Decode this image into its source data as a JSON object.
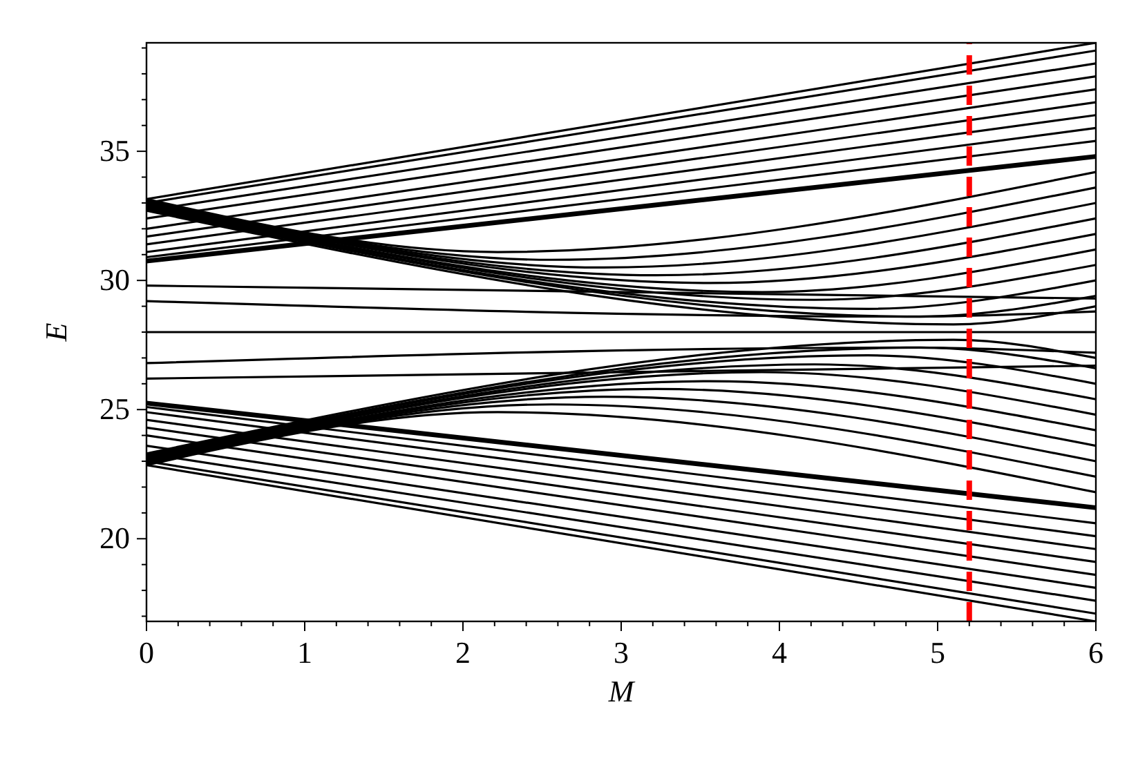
{
  "chart_data": {
    "type": "line",
    "xlabel": "M",
    "ylabel": "E",
    "xlim": [
      0,
      6
    ],
    "ylim": [
      16.8,
      39.2
    ],
    "xticks": [
      0,
      {
        "value": 0.2,
        "label": null
      },
      {
        "value": 0.4,
        "label": null
      },
      {
        "value": 0.6,
        "label": null
      },
      {
        "value": 0.8,
        "label": null
      },
      1,
      {
        "value": 1.2,
        "label": null
      },
      {
        "value": 1.4,
        "label": null
      },
      {
        "value": 1.6,
        "label": null
      },
      {
        "value": 1.8,
        "label": null
      },
      2,
      {
        "value": 2.2,
        "label": null
      },
      {
        "value": 2.4,
        "label": null
      },
      {
        "value": 2.6,
        "label": null
      },
      {
        "value": 2.8,
        "label": null
      },
      3,
      {
        "value": 3.2,
        "label": null
      },
      {
        "value": 3.4,
        "label": null
      },
      {
        "value": 3.6,
        "label": null
      },
      {
        "value": 3.8,
        "label": null
      },
      4,
      {
        "value": 4.2,
        "label": null
      },
      {
        "value": 4.4,
        "label": null
      },
      {
        "value": 4.6,
        "label": null
      },
      {
        "value": 4.8,
        "label": null
      },
      5,
      {
        "value": 5.2,
        "label": null
      },
      {
        "value": 5.4,
        "label": null
      },
      {
        "value": 5.6,
        "label": null
      },
      {
        "value": 5.8,
        "label": null
      },
      6
    ],
    "yticks": [
      {
        "value": 17,
        "label": null
      },
      {
        "value": 18,
        "label": null
      },
      {
        "value": 19,
        "label": null
      },
      20,
      {
        "value": 21,
        "label": null
      },
      {
        "value": 22,
        "label": null
      },
      {
        "value": 23,
        "label": null
      },
      {
        "value": 24,
        "label": null
      },
      25,
      {
        "value": 26,
        "label": null
      },
      {
        "value": 27,
        "label": null
      },
      {
        "value": 28,
        "label": null
      },
      {
        "value": 29,
        "label": null
      },
      30,
      {
        "value": 31,
        "label": null
      },
      {
        "value": 32,
        "label": null
      },
      {
        "value": 33,
        "label": null
      },
      {
        "value": 34,
        "label": null
      },
      35,
      {
        "value": 36,
        "label": null
      },
      {
        "value": 37,
        "label": null
      },
      {
        "value": 38,
        "label": null
      },
      {
        "value": 39,
        "label": null
      }
    ],
    "grid": false,
    "marker": "none",
    "line_style": "solid",
    "ref_lines": [
      {
        "axis": "x",
        "value": 5.2,
        "color": "#ff0000",
        "line_style": "dashed"
      }
    ],
    "series": [
      {
        "color": "#000000",
        "x": [
          0,
          6
        ],
        "values": [
          33.15,
          39.2
        ]
      },
      {
        "color": "#000000",
        "x": [
          0,
          6
        ],
        "values": [
          33.0,
          38.9
        ]
      },
      {
        "color": "#000000",
        "x": [
          0,
          6
        ],
        "values": [
          32.7,
          38.4
        ]
      },
      {
        "color": "#000000",
        "x": [
          0,
          6
        ],
        "values": [
          32.4,
          37.9
        ]
      },
      {
        "color": "#000000",
        "x": [
          0,
          6
        ],
        "values": [
          32.0,
          37.4
        ]
      },
      {
        "color": "#000000",
        "x": [
          0,
          6
        ],
        "values": [
          31.7,
          36.9
        ]
      },
      {
        "color": "#000000",
        "x": [
          0,
          6
        ],
        "values": [
          31.4,
          36.4
        ]
      },
      {
        "color": "#000000",
        "x": [
          0,
          6
        ],
        "values": [
          31.1,
          35.9
        ]
      },
      {
        "color": "#000000",
        "x": [
          0,
          6
        ],
        "values": [
          30.9,
          35.4
        ]
      },
      {
        "color": "#000000",
        "x": [
          0,
          6
        ],
        "values": [
          30.8,
          34.85
        ]
      },
      {
        "color": "#000000",
        "x": [
          0,
          6
        ],
        "values": [
          30.75,
          34.8
        ]
      },
      {
        "color": "#000000",
        "x": [
          0,
          6
        ],
        "values": [
          30.7,
          34.75
        ]
      },
      {
        "color": "#000000",
        "x": [
          0,
          2.22,
          6
        ],
        "values": [
          33.15,
          31.1,
          34.2
        ]
      },
      {
        "color": "#000000",
        "x": [
          0,
          2.56,
          6
        ],
        "values": [
          33.1,
          30.8,
          33.6
        ]
      },
      {
        "color": "#000000",
        "x": [
          0,
          2.89,
          6
        ],
        "values": [
          33.05,
          30.5,
          33.0
        ]
      },
      {
        "color": "#000000",
        "x": [
          0,
          3.22,
          6
        ],
        "values": [
          33.0,
          30.2,
          32.4
        ]
      },
      {
        "color": "#000000",
        "x": [
          0,
          3.56,
          6
        ],
        "values": [
          32.95,
          29.9,
          31.8
        ]
      },
      {
        "color": "#000000",
        "x": [
          0,
          3.89,
          6
        ],
        "values": [
          32.9,
          29.55,
          31.2
        ]
      },
      {
        "color": "#000000",
        "x": [
          0,
          4.22,
          6
        ],
        "values": [
          32.85,
          29.25,
          30.6
        ]
      },
      {
        "color": "#000000",
        "x": [
          0,
          4.56,
          6
        ],
        "values": [
          32.8,
          28.9,
          30.0
        ]
      },
      {
        "color": "#000000",
        "x": [
          0,
          4.89,
          6
        ],
        "values": [
          32.75,
          28.6,
          29.4
        ]
      },
      {
        "color": "#000000",
        "x": [
          0,
          5.1,
          6
        ],
        "values": [
          32.7,
          28.3,
          29.0
        ]
      },
      {
        "color": "#000000",
        "x": [
          0,
          6
        ],
        "values": [
          29.8,
          29.3
        ]
      },
      {
        "color": "#000000",
        "x": [
          0,
          4.8,
          6
        ],
        "values": [
          29.2,
          28.6,
          28.8
        ]
      },
      {
        "color": "#000000",
        "x": [
          0,
          6
        ],
        "values": [
          28.0,
          28.0
        ]
      },
      {
        "color": "#000000",
        "x": [
          0,
          4.8,
          6
        ],
        "values": [
          26.8,
          27.4,
          27.2
        ]
      },
      {
        "color": "#000000",
        "x": [
          0,
          6
        ],
        "values": [
          26.2,
          26.7
        ]
      },
      {
        "color": "#000000",
        "x": [
          0,
          5.1,
          6
        ],
        "values": [
          23.3,
          27.7,
          27.0
        ]
      },
      {
        "color": "#000000",
        "x": [
          0,
          4.89,
          6
        ],
        "values": [
          23.25,
          27.4,
          26.6
        ]
      },
      {
        "color": "#000000",
        "x": [
          0,
          4.56,
          6
        ],
        "values": [
          23.2,
          27.1,
          26.0
        ]
      },
      {
        "color": "#000000",
        "x": [
          0,
          4.22,
          6
        ],
        "values": [
          23.15,
          26.75,
          25.4
        ]
      },
      {
        "color": "#000000",
        "x": [
          0,
          3.89,
          6
        ],
        "values": [
          23.1,
          26.45,
          24.8
        ]
      },
      {
        "color": "#000000",
        "x": [
          0,
          3.56,
          6
        ],
        "values": [
          23.05,
          26.1,
          24.2
        ]
      },
      {
        "color": "#000000",
        "x": [
          0,
          3.22,
          6
        ],
        "values": [
          23.0,
          25.8,
          23.6
        ]
      },
      {
        "color": "#000000",
        "x": [
          0,
          2.89,
          6
        ],
        "values": [
          22.95,
          25.5,
          23.0
        ]
      },
      {
        "color": "#000000",
        "x": [
          0,
          2.56,
          6
        ],
        "values": [
          22.9,
          25.2,
          22.4
        ]
      },
      {
        "color": "#000000",
        "x": [
          0,
          2.22,
          6
        ],
        "values": [
          22.85,
          24.9,
          21.8
        ]
      },
      {
        "color": "#000000",
        "x": [
          0,
          6
        ],
        "values": [
          25.3,
          21.25
        ]
      },
      {
        "color": "#000000",
        "x": [
          0,
          6
        ],
        "values": [
          25.25,
          21.2
        ]
      },
      {
        "color": "#000000",
        "x": [
          0,
          6
        ],
        "values": [
          25.2,
          21.15
        ]
      },
      {
        "color": "#000000",
        "x": [
          0,
          6
        ],
        "values": [
          25.1,
          20.6
        ]
      },
      {
        "color": "#000000",
        "x": [
          0,
          6
        ],
        "values": [
          24.9,
          20.1
        ]
      },
      {
        "color": "#000000",
        "x": [
          0,
          6
        ],
        "values": [
          24.6,
          19.6
        ]
      },
      {
        "color": "#000000",
        "x": [
          0,
          6
        ],
        "values": [
          24.3,
          19.1
        ]
      },
      {
        "color": "#000000",
        "x": [
          0,
          6
        ],
        "values": [
          24.0,
          18.6
        ]
      },
      {
        "color": "#000000",
        "x": [
          0,
          6
        ],
        "values": [
          23.6,
          18.1
        ]
      },
      {
        "color": "#000000",
        "x": [
          0,
          6
        ],
        "values": [
          23.3,
          17.6
        ]
      },
      {
        "color": "#000000",
        "x": [
          0,
          6
        ],
        "values": [
          23.0,
          17.1
        ]
      },
      {
        "color": "#000000",
        "x": [
          0,
          6
        ],
        "values": [
          22.85,
          16.8
        ]
      }
    ]
  }
}
